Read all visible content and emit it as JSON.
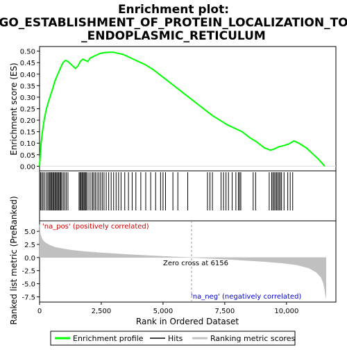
{
  "chart_data": {
    "type": "line",
    "title": "Enrichment plot:\nGO_ESTABLISHMENT_OF_PROTEIN_LOCALIZATION_TO\n_ENDOPLASMIC_RETICULUM",
    "xlabel": "Rank in Ordered Dataset",
    "xlim": [
      0,
      12000
    ],
    "x_ticks": [
      0,
      2500,
      5000,
      7500,
      10000
    ],
    "x_tick_labels": [
      "0",
      "2,500",
      "5,000",
      "7,500",
      "10,000"
    ],
    "es_panel": {
      "ylabel": "Enrichment score (ES)",
      "ylim": [
        -0.02,
        0.52
      ],
      "y_ticks": [
        0.0,
        0.05,
        0.1,
        0.15,
        0.2,
        0.25,
        0.3,
        0.35,
        0.4,
        0.45,
        0.5
      ],
      "y_tick_labels": [
        "0.00",
        "0.05",
        "0.10",
        "0.15",
        "0.20",
        "0.25",
        "0.30",
        "0.35",
        "0.40",
        "0.45",
        "0.50"
      ],
      "series": [
        {
          "name": "Enrichment profile",
          "color": "#00ff00",
          "x": [
            0,
            60,
            130,
            200,
            280,
            360,
            450,
            540,
            620,
            700,
            780,
            860,
            950,
            1050,
            1150,
            1250,
            1350,
            1450,
            1550,
            1650,
            1750,
            1850,
            1950,
            2050,
            2150,
            2250,
            2350,
            2450,
            2550,
            2650,
            2800,
            3000,
            3200,
            3400,
            3600,
            3800,
            4000,
            4300,
            4600,
            4900,
            5200,
            5500,
            5800,
            6100,
            6400,
            6700,
            7000,
            7300,
            7600,
            7900,
            8200,
            8500,
            8800,
            9100,
            9350,
            9500,
            9700,
            9900,
            10050,
            10150,
            10300,
            10500,
            10800,
            11100,
            11300,
            11550
          ],
          "y": [
            0.0,
            0.1,
            0.16,
            0.21,
            0.25,
            0.28,
            0.31,
            0.34,
            0.37,
            0.39,
            0.41,
            0.43,
            0.45,
            0.46,
            0.455,
            0.445,
            0.435,
            0.425,
            0.435,
            0.455,
            0.465,
            0.46,
            0.455,
            0.47,
            0.475,
            0.48,
            0.485,
            0.49,
            0.492,
            0.494,
            0.495,
            0.495,
            0.49,
            0.485,
            0.475,
            0.465,
            0.455,
            0.44,
            0.42,
            0.395,
            0.37,
            0.345,
            0.32,
            0.295,
            0.27,
            0.245,
            0.22,
            0.2,
            0.18,
            0.165,
            0.15,
            0.125,
            0.105,
            0.08,
            0.07,
            0.075,
            0.085,
            0.09,
            0.095,
            0.1,
            0.11,
            0.1,
            0.08,
            0.05,
            0.03,
            0.0
          ]
        }
      ]
    },
    "hits_x": [
      40,
      90,
      140,
      200,
      270,
      330,
      380,
      420,
      460,
      500,
      540,
      580,
      620,
      660,
      700,
      740,
      780,
      820,
      860,
      900,
      960,
      1020,
      1080,
      1150,
      1600,
      1640,
      1680,
      1720,
      1760,
      1800,
      1840,
      1880,
      1920,
      2000,
      2080,
      2150,
      2200,
      2260,
      2330,
      2400,
      2470,
      2540,
      2610,
      2700,
      2800,
      2900,
      3000,
      3100,
      3200,
      3300,
      3450,
      3600,
      3750,
      3900,
      4100,
      4300,
      4500,
      4700,
      4900,
      5000,
      5100,
      5400,
      5600,
      6000,
      6800,
      6900,
      7000,
      7350,
      7450,
      7550,
      7650,
      7800,
      7950,
      8050,
      8100,
      8150,
      8650,
      8750,
      9300,
      9400,
      9450,
      9500,
      9550,
      9600,
      9650,
      9700,
      9750,
      9800,
      9900,
      10050,
      10150,
      10250
    ],
    "hits_color": "#000000",
    "ranking_panel": {
      "ylabel": "Ranked list metric (PreRanked)",
      "ylim": [
        -8.5,
        7.0
      ],
      "y_ticks": [
        -7.5,
        -5.0,
        -2.5,
        0.0,
        2.5,
        5.0
      ],
      "y_tick_labels": [
        "-7.5",
        "-5.0",
        "-2.5",
        "0.0",
        "2.5",
        "5.0"
      ],
      "series": [
        {
          "name": "Ranking metric scores",
          "color": "#c0c0c0",
          "x": [
            0,
            30,
            80,
            150,
            250,
            400,
            600,
            900,
            1300,
            1800,
            2500,
            3500,
            4500,
            5500,
            6156,
            7000,
            8000,
            9000,
            9800,
            10400,
            10900,
            11200,
            11400,
            11500,
            11560,
            11600
          ],
          "y": [
            6.3,
            4.6,
            3.8,
            3.2,
            2.8,
            2.4,
            2.0,
            1.7,
            1.4,
            1.15,
            0.9,
            0.6,
            0.35,
            0.12,
            0.0,
            -0.2,
            -0.45,
            -0.75,
            -1.05,
            -1.4,
            -2.0,
            -2.8,
            -3.8,
            -5.0,
            -6.5,
            -7.8
          ]
        }
      ],
      "zero_cross": 6156,
      "zero_cross_label": "Zero cross at 6156",
      "pos_label": "'na_pos' (positively correlated)",
      "neg_label": "'na_neg' (negatively correlated)",
      "pos_label_color": "#cc0000",
      "neg_label_color": "#0000cc"
    },
    "legend": {
      "position": "bottom",
      "items": [
        "Enrichment profile",
        "Hits",
        "Ranking metric scores"
      ]
    },
    "grid": false
  }
}
